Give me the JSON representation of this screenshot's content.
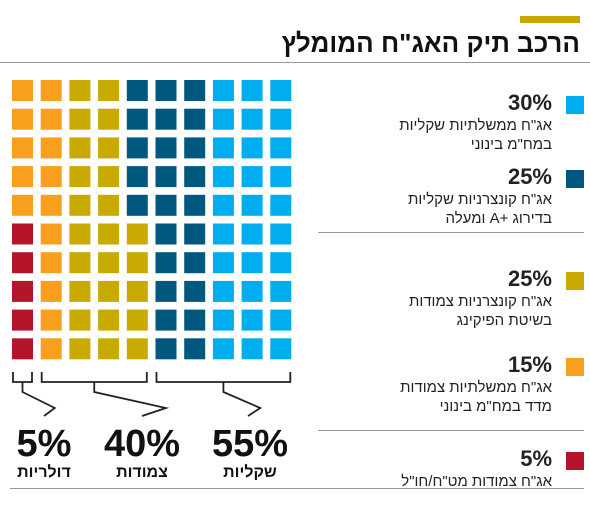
{
  "header": {
    "title": "הרכב תיק האג\"ח המומלץ"
  },
  "chart_data": {
    "type": "waffle",
    "title": "הרכב תיק האג\"ח המומלץ",
    "grid": {
      "rows": 10,
      "cols": 10
    },
    "series": [
      {
        "key": "gov_fixed",
        "pct_label": "30%",
        "value": 30,
        "color": "#00aeef",
        "lines": [
          "אג\"ח ממשלתיות שקליות",
          "במח\"מ בינוני"
        ]
      },
      {
        "key": "corp_fixed",
        "pct_label": "25%",
        "value": 25,
        "color": "#00587f",
        "lines": [
          "אג\"ח קונצרניות שקליות",
          "בדירוג +A ומעלה"
        ]
      },
      {
        "key": "corp_linked",
        "pct_label": "25%",
        "value": 25,
        "color": "#c9aa00",
        "lines": [
          "אג\"ח קונצרניות צמודות",
          "בשיטת הפיקינג"
        ]
      },
      {
        "key": "gov_linked",
        "pct_label": "15%",
        "value": 15,
        "color": "#f8a01d",
        "lines": [
          "אג\"ח ממשלתיות צמודות",
          "מדד במח\"מ בינוני"
        ]
      },
      {
        "key": "fx",
        "pct_label": "5%",
        "value": 5,
        "color": "#b5152b",
        "lines": [
          "אג\"ח צמודות מט\"ח/חו\"ל"
        ]
      }
    ],
    "groups": [
      {
        "key": "shekel",
        "pct_label": "55%",
        "value": 55,
        "name": "שקליות"
      },
      {
        "key": "linked",
        "pct_label": "40%",
        "value": 40,
        "name": "צמודות"
      },
      {
        "key": "dollar",
        "pct_label": "5%",
        "value": 5,
        "name": "דולריות"
      }
    ]
  }
}
